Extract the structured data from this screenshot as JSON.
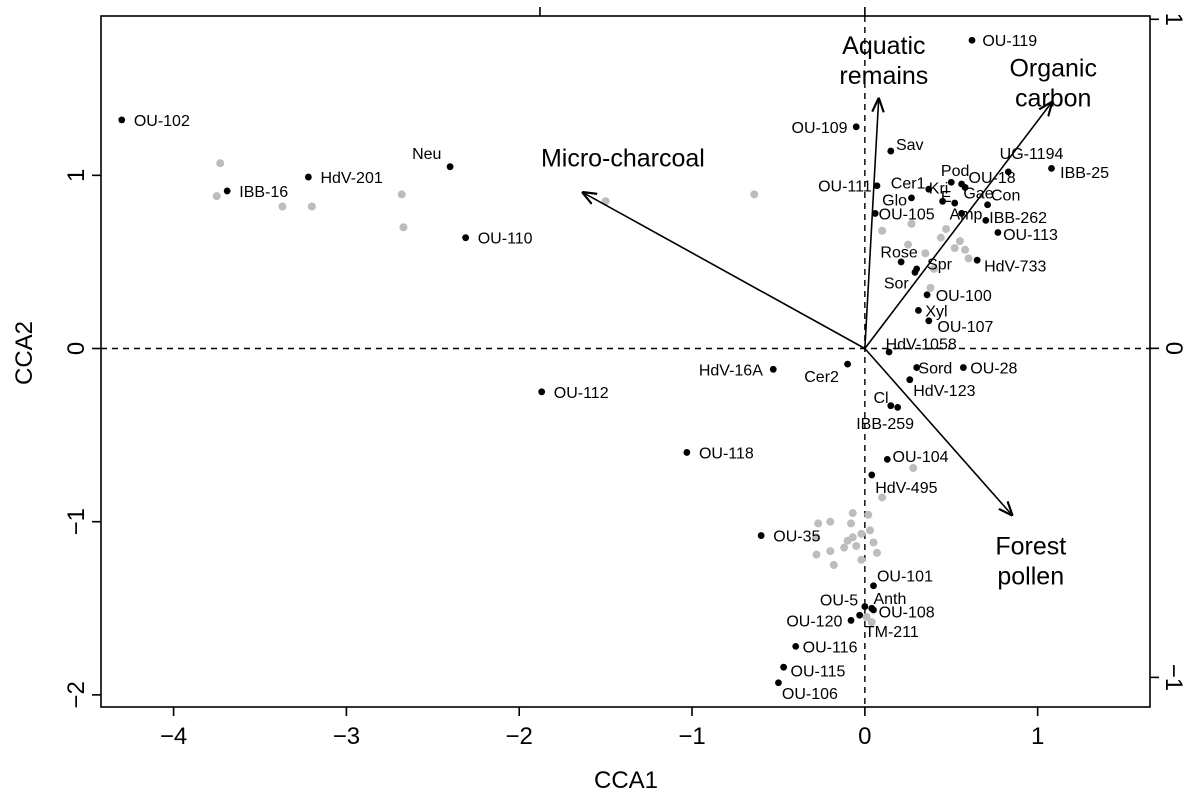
{
  "chart_data": {
    "type": "scatter",
    "title": "",
    "xlabel": "CCA1",
    "ylabel": "CCA2",
    "xlim": [
      -4.42,
      1.65
    ],
    "ylim": [
      -2.07,
      1.92
    ],
    "y2lim": [
      -1.09,
      1.01
    ],
    "x_ticks": [
      -4,
      -3,
      -2,
      -1,
      0,
      1
    ],
    "x_tick_labels": [
      "−4",
      "−3",
      "−2",
      "−1",
      "0",
      "1"
    ],
    "y_ticks": [
      -2,
      -1,
      0,
      1
    ],
    "y_tick_labels": [
      "−2",
      "−1",
      "0",
      "1"
    ],
    "y2_ticks": [
      -1,
      0,
      1
    ],
    "y2_tick_labels": [
      "−1",
      "0",
      "1"
    ],
    "top_ticks": [
      -1.88,
      0
    ],
    "zero_lines": "dashed",
    "colors": {
      "site": "#000000",
      "taxon": "#bdbdbd",
      "axis": "#000000"
    },
    "arrows": [
      {
        "label": "Micro-charcoal",
        "lines": [
          "Micro-charcoal"
        ],
        "x": -1.63,
        "y": 0.9,
        "label_x": -1.4,
        "label_y": 1.05,
        "anchor": "middle"
      },
      {
        "label": "Aquatic remains",
        "lines": [
          "Aquatic",
          "remains"
        ],
        "x": 0.08,
        "y": 1.44,
        "label_x": 0.11,
        "label_y": 1.7,
        "anchor": "middle"
      },
      {
        "label": "Organic carbon",
        "lines": [
          "Organic",
          "carbon"
        ],
        "x": 1.08,
        "y": 1.42,
        "label_x": 1.09,
        "label_y": 1.57,
        "anchor": "middle"
      },
      {
        "label": "Forest pollen",
        "lines": [
          "Forest",
          "pollen"
        ],
        "x": 0.85,
        "y": -0.96,
        "label_x": 0.96,
        "label_y": -1.19,
        "anchor": "middle"
      }
    ],
    "sites": [
      {
        "label": "OU-102",
        "x": -4.3,
        "y": 1.32,
        "lx": -4.23,
        "ly": 1.32,
        "anchor": "start"
      },
      {
        "label": "IBB-16",
        "x": -3.69,
        "y": 0.91,
        "lx": -3.62,
        "ly": 0.91,
        "anchor": "start"
      },
      {
        "label": "HdV-201",
        "x": -3.22,
        "y": 0.99,
        "lx": -3.15,
        "ly": 0.99,
        "anchor": "start"
      },
      {
        "label": "Neu",
        "x": -2.4,
        "y": 1.05,
        "lx": -2.45,
        "ly": 1.13,
        "anchor": "end"
      },
      {
        "label": "OU-110",
        "x": -2.31,
        "y": 0.64,
        "lx": -2.24,
        "ly": 0.64,
        "anchor": "start"
      },
      {
        "label": "OU-112",
        "x": -1.87,
        "y": -0.25,
        "lx": -1.8,
        "ly": -0.25,
        "anchor": "start"
      },
      {
        "label": "OU-118",
        "x": -1.03,
        "y": -0.6,
        "lx": -0.96,
        "ly": -0.6,
        "anchor": "start"
      },
      {
        "label": "HdV-16A",
        "x": -0.53,
        "y": -0.12,
        "lx": -0.59,
        "ly": -0.12,
        "anchor": "end"
      },
      {
        "label": "Cer2",
        "x": -0.1,
        "y": -0.09,
        "lx": -0.15,
        "ly": -0.16,
        "anchor": "end"
      },
      {
        "label": "OU-35",
        "x": -0.6,
        "y": -1.08,
        "lx": -0.53,
        "ly": -1.08,
        "anchor": "start"
      },
      {
        "label": "OU-109",
        "x": -0.05,
        "y": 1.28,
        "lx": -0.1,
        "ly": 1.28,
        "anchor": "end"
      },
      {
        "label": "OU-111",
        "x": 0.07,
        "y": 0.94,
        "lx": 0.04,
        "ly": 0.94,
        "anchor": "end"
      },
      {
        "label": "Sav",
        "x": 0.15,
        "y": 1.14,
        "lx": 0.18,
        "ly": 1.18,
        "anchor": "start"
      },
      {
        "label": "OU-119",
        "x": 0.62,
        "y": 1.78,
        "lx": 0.68,
        "ly": 1.78,
        "anchor": "start"
      },
      {
        "label": "Pod",
        "x": 0.5,
        "y": 0.96,
        "lx": 0.44,
        "ly": 1.03,
        "anchor": "start"
      },
      {
        "label": "Cer1",
        "x": 0.37,
        "y": 0.92,
        "lx": 0.15,
        "ly": 0.96,
        "anchor": "start"
      },
      {
        "label": "Kri",
        "x": 0.56,
        "y": 0.95,
        "lx": 0.37,
        "ly": 0.93,
        "anchor": "start"
      },
      {
        "label": "OU-18",
        "x": 0.58,
        "y": 0.93,
        "lx": 0.6,
        "ly": 0.99,
        "anchor": "start"
      },
      {
        "label": "Glo",
        "x": 0.27,
        "y": 0.87,
        "lx": 0.1,
        "ly": 0.86,
        "anchor": "start"
      },
      {
        "label": "E",
        "x": 0.45,
        "y": 0.85,
        "lx": 0.44,
        "ly": 0.88,
        "anchor": "start"
      },
      {
        "label": "Gae",
        "x": 0.52,
        "y": 0.84,
        "lx": 0.57,
        "ly": 0.9,
        "anchor": "start"
      },
      {
        "label": "Con",
        "x": 0.71,
        "y": 0.83,
        "lx": 0.73,
        "ly": 0.89,
        "anchor": "start"
      },
      {
        "label": "UG-1194",
        "x": 0.83,
        "y": 1.02,
        "lx": 0.78,
        "ly": 1.13,
        "anchor": "start"
      },
      {
        "label": "IBB-25",
        "x": 1.08,
        "y": 1.04,
        "lx": 1.13,
        "ly": 1.02,
        "anchor": "start"
      },
      {
        "label": "OU-105",
        "x": 0.06,
        "y": 0.78,
        "lx": 0.08,
        "ly": 0.78,
        "anchor": "start"
      },
      {
        "label": "Amp",
        "x": 0.56,
        "y": 0.78,
        "lx": 0.49,
        "ly": 0.78,
        "anchor": "start"
      },
      {
        "label": "IBB-262",
        "x": 0.7,
        "y": 0.74,
        "lx": 0.72,
        "ly": 0.76,
        "anchor": "start"
      },
      {
        "label": "OU-113",
        "x": 0.77,
        "y": 0.67,
        "lx": 0.8,
        "ly": 0.66,
        "anchor": "start"
      },
      {
        "label": "Rose",
        "x": 0.21,
        "y": 0.5,
        "lx": 0.09,
        "ly": 0.56,
        "anchor": "start"
      },
      {
        "label": "Spr",
        "x": 0.3,
        "y": 0.46,
        "lx": 0.36,
        "ly": 0.49,
        "anchor": "start"
      },
      {
        "label": "HdV-733",
        "x": 0.65,
        "y": 0.51,
        "lx": 0.69,
        "ly": 0.48,
        "anchor": "start"
      },
      {
        "label": "Sor",
        "x": 0.29,
        "y": 0.44,
        "lx": 0.11,
        "ly": 0.38,
        "anchor": "start"
      },
      {
        "label": "OU-100",
        "x": 0.36,
        "y": 0.31,
        "lx": 0.41,
        "ly": 0.31,
        "anchor": "start"
      },
      {
        "label": "Xyl",
        "x": 0.31,
        "y": 0.22,
        "lx": 0.35,
        "ly": 0.22,
        "anchor": "start"
      },
      {
        "label": "OU-107",
        "x": 0.37,
        "y": 0.16,
        "lx": 0.42,
        "ly": 0.13,
        "anchor": "start"
      },
      {
        "label": "HdV-1058",
        "x": 0.14,
        "y": -0.02,
        "lx": 0.12,
        "ly": 0.03,
        "anchor": "start"
      },
      {
        "label": "Sord",
        "x": 0.3,
        "y": -0.11,
        "lx": 0.31,
        "ly": -0.11,
        "anchor": "start"
      },
      {
        "label": "OU-28",
        "x": 0.57,
        "y": -0.11,
        "lx": 0.61,
        "ly": -0.11,
        "anchor": "start"
      },
      {
        "label": "HdV-123",
        "x": 0.26,
        "y": -0.18,
        "lx": 0.28,
        "ly": -0.24,
        "anchor": "start"
      },
      {
        "label": "Cl",
        "x": 0.19,
        "y": -0.34,
        "lx": 0.05,
        "ly": -0.28,
        "anchor": "start"
      },
      {
        "label": "IBB-259",
        "x": 0.15,
        "y": -0.33,
        "lx": -0.05,
        "ly": -0.43,
        "anchor": "start"
      },
      {
        "label": "OU-104",
        "x": 0.13,
        "y": -0.64,
        "lx": 0.16,
        "ly": -0.62,
        "anchor": "start"
      },
      {
        "label": "HdV-495",
        "x": 0.04,
        "y": -0.73,
        "lx": 0.06,
        "ly": -0.8,
        "anchor": "start"
      },
      {
        "label": "OU-101",
        "x": 0.05,
        "y": -1.37,
        "lx": 0.07,
        "ly": -1.31,
        "anchor": "start"
      },
      {
        "label": "OU-5",
        "x": 0.0,
        "y": -1.49,
        "lx": -0.26,
        "ly": -1.45,
        "anchor": "start"
      },
      {
        "label": "Anth",
        "x": 0.04,
        "y": -1.5,
        "lx": 0.05,
        "ly": -1.44,
        "anchor": "start"
      },
      {
        "label": "OU-108",
        "x": 0.05,
        "y": -1.51,
        "lx": 0.08,
        "ly": -1.52,
        "anchor": "start"
      },
      {
        "label": "OU-120",
        "x": -0.08,
        "y": -1.57,
        "lx": -0.13,
        "ly": -1.57,
        "anchor": "end"
      },
      {
        "label": "TM-211",
        "x": -0.03,
        "y": -1.54,
        "lx": 0.0,
        "ly": -1.63,
        "anchor": "start"
      },
      {
        "label": "OU-116",
        "x": -0.4,
        "y": -1.72,
        "lx": -0.36,
        "ly": -1.72,
        "anchor": "start"
      },
      {
        "label": "OU-115",
        "x": -0.47,
        "y": -1.84,
        "lx": -0.43,
        "ly": -1.86,
        "anchor": "start"
      },
      {
        "label": "OU-106",
        "x": -0.5,
        "y": -1.93,
        "lx": -0.48,
        "ly": -1.99,
        "anchor": "start"
      }
    ],
    "taxa": [
      {
        "x": -3.73,
        "y": 1.07
      },
      {
        "x": -3.75,
        "y": 0.88
      },
      {
        "x": -3.37,
        "y": 0.82
      },
      {
        "x": -3.2,
        "y": 0.82
      },
      {
        "x": -2.68,
        "y": 0.89
      },
      {
        "x": -2.67,
        "y": 0.7
      },
      {
        "x": -1.5,
        "y": 0.85
      },
      {
        "x": -0.64,
        "y": 0.89
      },
      {
        "x": 0.1,
        "y": 0.68
      },
      {
        "x": 0.27,
        "y": 0.72
      },
      {
        "x": 0.44,
        "y": 0.64
      },
      {
        "x": 0.47,
        "y": 0.69
      },
      {
        "x": 0.55,
        "y": 0.62
      },
      {
        "x": 0.58,
        "y": 0.57
      },
      {
        "x": 0.6,
        "y": 0.52
      },
      {
        "x": 0.35,
        "y": 0.55
      },
      {
        "x": 0.38,
        "y": 0.35
      },
      {
        "x": 0.4,
        "y": 0.46
      },
      {
        "x": 0.52,
        "y": 0.58
      },
      {
        "x": 0.25,
        "y": 0.6
      },
      {
        "x": 0.28,
        "y": -0.69
      },
      {
        "x": 0.1,
        "y": -0.86
      },
      {
        "x": -0.07,
        "y": -0.95
      },
      {
        "x": -0.2,
        "y": -1.0
      },
      {
        "x": -0.27,
        "y": -1.01
      },
      {
        "x": -0.08,
        "y": -1.01
      },
      {
        "x": 0.02,
        "y": -0.96
      },
      {
        "x": 0.03,
        "y": -1.05
      },
      {
        "x": -0.02,
        "y": -1.07
      },
      {
        "x": -0.07,
        "y": -1.09
      },
      {
        "x": -0.1,
        "y": -1.11
      },
      {
        "x": -0.05,
        "y": -1.14
      },
      {
        "x": 0.05,
        "y": -1.12
      },
      {
        "x": 0.07,
        "y": -1.18
      },
      {
        "x": -0.12,
        "y": -1.15
      },
      {
        "x": -0.2,
        "y": -1.17
      },
      {
        "x": -0.28,
        "y": -1.19
      },
      {
        "x": -0.18,
        "y": -1.25
      },
      {
        "x": -0.28,
        "y": -1.09
      },
      {
        "x": -0.02,
        "y": -1.22
      },
      {
        "x": 0.04,
        "y": -1.58
      },
      {
        "x": 0.01,
        "y": -1.55
      }
    ]
  }
}
